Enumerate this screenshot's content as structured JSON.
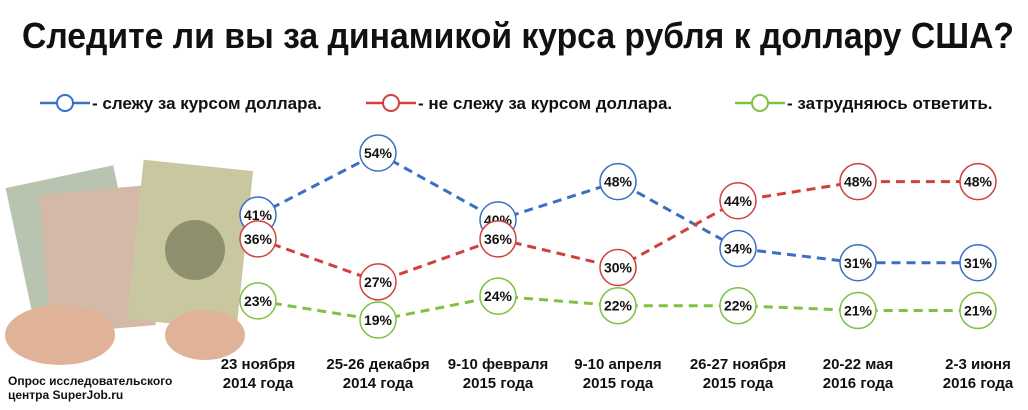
{
  "chart_data": {
    "type": "line",
    "title": "Следите ли вы за динамикой курса рубля к доллару США?",
    "categories": [
      "23 ноября\n2014 года",
      "25-26 декабря\n2014 года",
      "9-10 февраля\n2015 года",
      "9-10 апреля\n2015 года",
      "26-27 ноября\n2015 года",
      "20-22 мая\n2016 года",
      "2-3 июня\n2016 года"
    ],
    "series": [
      {
        "name": "- слежу за курсом доллара.",
        "color": "#3b6fc4",
        "values": [
          41,
          54,
          40,
          48,
          34,
          31,
          31
        ],
        "value_labels": [
          "41%",
          "54%",
          "40%",
          "48%",
          "34%",
          "31%",
          "31%"
        ]
      },
      {
        "name": "- не слежу за курсом доллара.",
        "color": "#d0413d",
        "values": [
          36,
          27,
          36,
          30,
          44,
          48,
          48
        ],
        "value_labels": [
          "36%",
          "27%",
          "36%",
          "30%",
          "44%",
          "48%",
          "48%"
        ]
      },
      {
        "name": "- затрудняюсь ответить.",
        "color": "#7dc242",
        "values": [
          23,
          19,
          24,
          22,
          22,
          21,
          21
        ],
        "value_labels": [
          "23%",
          "19%",
          "24%",
          "22%",
          "22%",
          "21%",
          "21%"
        ]
      }
    ],
    "source": "Опрос исследовательского\nцентра SuperJob.ru"
  }
}
